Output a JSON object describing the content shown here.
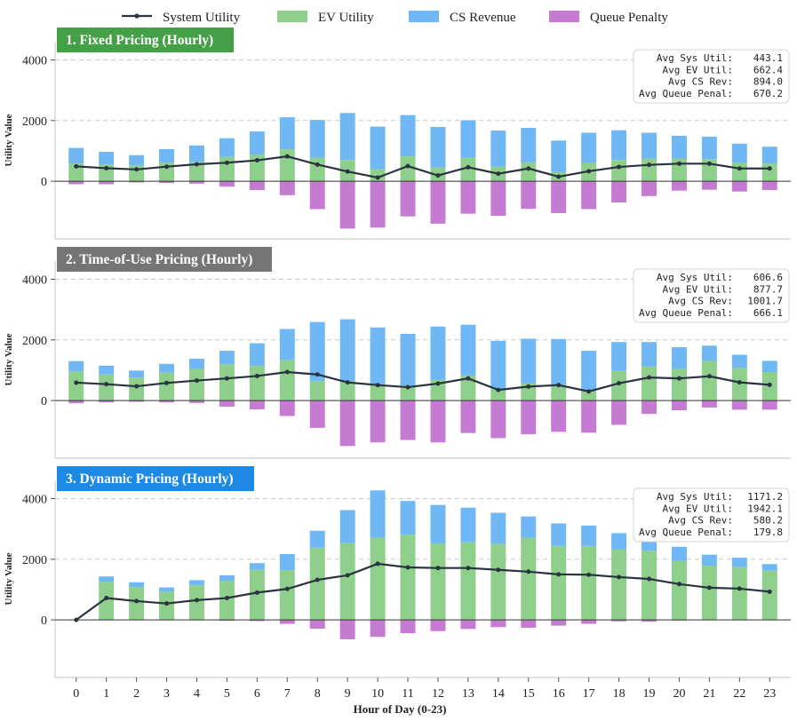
{
  "chart_data": {
    "type": "bar",
    "legend": {
      "placement": "top-center",
      "entries": [
        {
          "key": "sys",
          "label": "System Utility",
          "color": "#2a3340",
          "kind": "line"
        },
        {
          "key": "ev",
          "label": "EV Utility",
          "color": "#8fcf8c",
          "kind": "patch"
        },
        {
          "key": "cs",
          "label": "CS Revenue",
          "color": "#6fb8f5",
          "kind": "patch"
        },
        {
          "key": "queue",
          "label": "Queue Penalty",
          "color": "#c67bd3",
          "kind": "patch"
        }
      ]
    },
    "xlabel": "Hour of Day (0-23)",
    "ylabel": "Utility Value",
    "categories": [
      "0",
      "1",
      "2",
      "3",
      "4",
      "5",
      "6",
      "7",
      "8",
      "9",
      "10",
      "11",
      "12",
      "13",
      "14",
      "15",
      "16",
      "17",
      "18",
      "19",
      "20",
      "21",
      "22",
      "23"
    ],
    "ylim": [
      -1900,
      4600
    ],
    "yticks": [
      0,
      2000,
      4000
    ],
    "grid": "horizontal dashed",
    "panels": [
      {
        "title": "1. Fixed Pricing (Hourly)",
        "title_color": "#43a047",
        "stats": [
          {
            "label": "Avg Sys Util:",
            "value": "443.1"
          },
          {
            "label": "Avg EV Util:",
            "value": "662.4"
          },
          {
            "label": "Avg CS Rev:",
            "value": "894.0"
          },
          {
            "label": "Avg Queue Penal:",
            "value": "670.2"
          }
        ],
        "ev": [
          580,
          550,
          520,
          600,
          640,
          800,
          880,
          1050,
          780,
          700,
          400,
          820,
          450,
          780,
          480,
          620,
          300,
          600,
          700,
          750,
          750,
          730,
          600,
          580
        ],
        "cs": [
          520,
          420,
          340,
          460,
          540,
          620,
          760,
          1060,
          1240,
          1550,
          1400,
          1360,
          1340,
          1230,
          1190,
          1140,
          1040,
          1000,
          980,
          850,
          750,
          740,
          640,
          560
        ],
        "queue": [
          -100,
          -100,
          -40,
          -60,
          -80,
          -180,
          -290,
          -460,
          -920,
          -1560,
          -1530,
          -1160,
          -1400,
          -1070,
          -1140,
          -910,
          -1050,
          -920,
          -700,
          -490,
          -310,
          -280,
          -340,
          -290
        ],
        "sys": [
          490,
          430,
          390,
          480,
          560,
          610,
          690,
          820,
          550,
          320,
          120,
          500,
          190,
          460,
          250,
          420,
          150,
          330,
          470,
          540,
          580,
          580,
          420,
          420
        ]
      },
      {
        "title": "2. Time-of-Use Pricing (Hourly)",
        "title_color": "#757575",
        "stats": [
          {
            "label": "Avg Sys Util:",
            "value": "606.6"
          },
          {
            "label": "Avg EV Util:",
            "value": "877.7"
          },
          {
            "label": "Avg CS Rev:",
            "value": "1001.7"
          },
          {
            "label": "Avg Queue Penal:",
            "value": "666.1"
          }
        ],
        "ev": [
          960,
          860,
          760,
          920,
          1040,
          1200,
          1140,
          1340,
          640,
          640,
          540,
          500,
          680,
          820,
          400,
          560,
          520,
          300,
          980,
          1120,
          1040,
          1320,
          1080,
          940
        ],
        "cs": [
          340,
          290,
          230,
          290,
          340,
          440,
          750,
          1020,
          1950,
          2040,
          1870,
          1700,
          1760,
          1680,
          1570,
          1480,
          1510,
          1340,
          950,
          810,
          720,
          490,
          430,
          370
        ],
        "queue": [
          -90,
          -60,
          -40,
          -60,
          -80,
          -200,
          -290,
          -510,
          -900,
          -1500,
          -1380,
          -1300,
          -1380,
          -1070,
          -1240,
          -1110,
          -1030,
          -1060,
          -800,
          -440,
          -320,
          -230,
          -300,
          -300
        ],
        "sys": [
          590,
          540,
          470,
          580,
          660,
          730,
          810,
          940,
          860,
          600,
          510,
          440,
          560,
          730,
          350,
          460,
          510,
          300,
          570,
          760,
          730,
          800,
          600,
          520
        ]
      },
      {
        "title": "3. Dynamic Pricing (Hourly)",
        "title_color": "#1e88e5",
        "stats": [
          {
            "label": "Avg Sys Util:",
            "value": "1171.2"
          },
          {
            "label": "Avg EV Util:",
            "value": "1942.1"
          },
          {
            "label": "Avg CS Rev:",
            "value": "580.2"
          },
          {
            "label": "Avg Queue Penal:",
            "value": "179.8"
          }
        ],
        "ev": [
          0,
          1260,
          1080,
          930,
          1140,
          1290,
          1650,
          1640,
          2380,
          2530,
          2710,
          2810,
          2520,
          2560,
          2510,
          2710,
          2440,
          2440,
          2330,
          2280,
          1940,
          1790,
          1740,
          1620
        ],
        "cs": [
          0,
          170,
          160,
          140,
          170,
          180,
          220,
          530,
          560,
          1090,
          1560,
          1110,
          1270,
          1140,
          1020,
          700,
          740,
          670,
          530,
          470,
          470,
          360,
          310,
          220
        ],
        "queue": [
          0,
          0,
          0,
          0,
          0,
          -30,
          -40,
          -130,
          -290,
          -640,
          -560,
          -440,
          -370,
          -300,
          -240,
          -260,
          -190,
          -130,
          -50,
          -60,
          -20,
          0,
          0,
          0
        ],
        "sys": [
          0,
          720,
          620,
          540,
          650,
          720,
          900,
          1020,
          1320,
          1470,
          1850,
          1730,
          1710,
          1710,
          1650,
          1590,
          1500,
          1490,
          1410,
          1350,
          1180,
          1060,
          1030,
          930
        ]
      }
    ]
  }
}
